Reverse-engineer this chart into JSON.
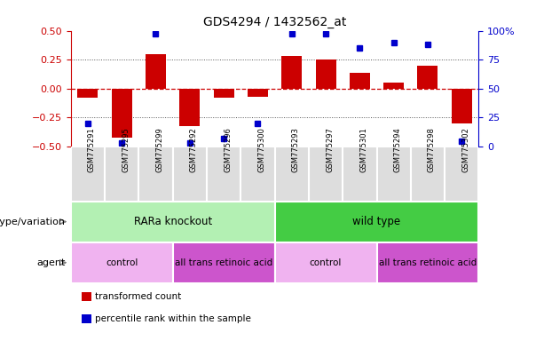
{
  "title": "GDS4294 / 1432562_at",
  "samples": [
    "GSM775291",
    "GSM775295",
    "GSM775299",
    "GSM775292",
    "GSM775296",
    "GSM775300",
    "GSM775293",
    "GSM775297",
    "GSM775301",
    "GSM775294",
    "GSM775298",
    "GSM775302"
  ],
  "bar_values": [
    -0.08,
    -0.42,
    0.3,
    -0.32,
    -0.08,
    -0.07,
    0.28,
    0.25,
    0.14,
    0.05,
    0.2,
    -0.3
  ],
  "percentile_values": [
    20,
    3,
    97,
    3,
    7,
    20,
    97,
    97,
    85,
    90,
    88,
    5
  ],
  "bar_color": "#cc0000",
  "dot_color": "#0000cc",
  "ylim": [
    -0.5,
    0.5
  ],
  "yticks_left": [
    -0.5,
    -0.25,
    0.0,
    0.25,
    0.5
  ],
  "yticks_right": [
    0,
    25,
    50,
    75,
    100
  ],
  "hline_color": "#cc0000",
  "dotted_color": "#555555",
  "genotype_groups": [
    {
      "label": "RARa knockout",
      "start": 0,
      "end": 6,
      "color": "#b3f0b3"
    },
    {
      "label": "wild type",
      "start": 6,
      "end": 12,
      "color": "#44cc44"
    }
  ],
  "agent_groups": [
    {
      "label": "control",
      "start": 0,
      "end": 3,
      "color": "#f0b3f0"
    },
    {
      "label": "all trans retinoic acid",
      "start": 3,
      "end": 6,
      "color": "#cc55cc"
    },
    {
      "label": "control",
      "start": 6,
      "end": 9,
      "color": "#f0b3f0"
    },
    {
      "label": "all trans retinoic acid",
      "start": 9,
      "end": 12,
      "color": "#cc55cc"
    }
  ],
  "legend_items": [
    {
      "label": "transformed count",
      "color": "#cc0000"
    },
    {
      "label": "percentile rank within the sample",
      "color": "#0000cc"
    }
  ],
  "genotype_label": "genotype/variation",
  "agent_label": "agent",
  "tick_bg_color": "#dddddd",
  "tick_sep_color": "#888888"
}
